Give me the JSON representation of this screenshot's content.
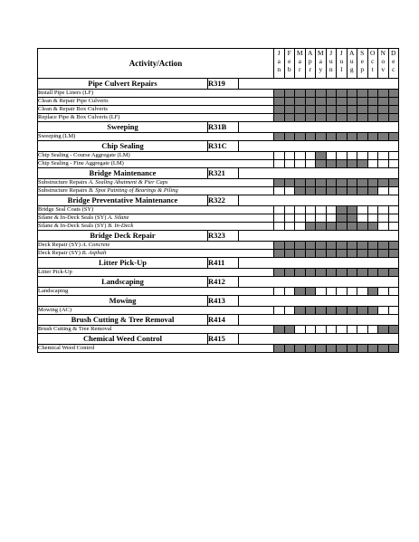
{
  "header": {
    "activity_label": "Activity/Action",
    "months": [
      "Jan",
      "Feb",
      "Mar",
      "Apr",
      "May",
      "Jun",
      "Jul",
      "Aug",
      "Sep",
      "Oct",
      "Nov",
      "Dec"
    ]
  },
  "colors": {
    "shaded": "#7a7a7a",
    "empty": "#ffffff"
  },
  "sections": [
    {
      "title": "Pipe Culvert Repairs",
      "code": "R319",
      "items": [
        {
          "label": "Install Pipe Liners (LF)",
          "months": [
            1,
            1,
            1,
            1,
            1,
            1,
            1,
            1,
            1,
            1,
            1,
            1
          ]
        },
        {
          "label": "Clean & Repair Pipe Culverts",
          "months": [
            1,
            1,
            1,
            1,
            1,
            1,
            1,
            1,
            1,
            1,
            1,
            1
          ]
        },
        {
          "label": "Clean & Repair Box Culverts",
          "months": [
            1,
            1,
            1,
            1,
            1,
            1,
            1,
            1,
            1,
            1,
            1,
            1
          ]
        },
        {
          "label": "Replace Pipe & Box Culverts (LF)",
          "months": [
            1,
            1,
            1,
            1,
            1,
            1,
            1,
            1,
            1,
            1,
            1,
            1
          ]
        }
      ]
    },
    {
      "title": "Sweeping",
      "code": "R31B",
      "items": [
        {
          "label": "Sweeping (LM)",
          "months": [
            1,
            1,
            1,
            1,
            1,
            1,
            1,
            1,
            1,
            1,
            1,
            1
          ]
        }
      ]
    },
    {
      "title": "Chip Sealing",
      "code": "R31C",
      "items": [
        {
          "label": "Chip Sealing - Course Aggregate  (LM)",
          "months": [
            0,
            0,
            0,
            0,
            1,
            0,
            0,
            0,
            0,
            0,
            0,
            0
          ]
        },
        {
          "label": "Chip Sealing - Fine Aggregate  (LM)",
          "months": [
            0,
            0,
            0,
            0,
            1,
            1,
            1,
            1,
            1,
            0,
            0,
            0
          ]
        }
      ]
    },
    {
      "title": "Bridge Maintenance",
      "code": "R321",
      "items": [
        {
          "label": "Substructure Repairs ",
          "label_italic": "A.  Sealing Abutment & Pier Caps",
          "months": [
            1,
            1,
            1,
            1,
            1,
            1,
            1,
            1,
            1,
            1,
            1,
            1
          ]
        },
        {
          "label": "Substructure Repairs ",
          "label_italic": "B.  Spot Painting of Bearings & Piling",
          "months": [
            0,
            0,
            1,
            1,
            1,
            1,
            1,
            1,
            1,
            1,
            0,
            0
          ]
        }
      ]
    },
    {
      "title": "Bridge Preventative Maintenance",
      "code": "R322",
      "items": [
        {
          "label": "Bridge Seal Coats (SY)",
          "months": [
            0,
            0,
            0,
            0,
            0,
            0,
            1,
            1,
            0,
            0,
            0,
            0
          ]
        },
        {
          "label": "Silane & In-Deck Seals (SY) ",
          "label_italic": "A.  Silane",
          "months": [
            0,
            0,
            0,
            0,
            0,
            0,
            1,
            1,
            0,
            0,
            0,
            0
          ]
        },
        {
          "label": "Silane & In-Deck Seals (SY) ",
          "label_italic": "B.  In-Deck",
          "months": [
            0,
            0,
            0,
            1,
            1,
            1,
            1,
            1,
            1,
            1,
            0,
            0
          ]
        }
      ]
    },
    {
      "title": "Bridge Deck Repair",
      "code": "R323",
      "items": [
        {
          "label": "Deck Repair (SY) ",
          "label_italic": "A. Concrete",
          "months": [
            1,
            1,
            1,
            1,
            1,
            1,
            1,
            1,
            1,
            1,
            1,
            1
          ]
        },
        {
          "label": "Deck Repair (SY) ",
          "label_italic": "B. Asphalt",
          "months": [
            1,
            1,
            1,
            1,
            1,
            1,
            1,
            1,
            1,
            1,
            1,
            1
          ]
        }
      ]
    },
    {
      "title": "Litter Pick-Up",
      "code": "R411",
      "items": [
        {
          "label": "Litter Pick-Up",
          "months": [
            1,
            1,
            1,
            1,
            1,
            1,
            1,
            1,
            1,
            1,
            1,
            1
          ]
        }
      ]
    },
    {
      "title": "Landscaping",
      "code": "R412",
      "items": [
        {
          "label": "Landscaping",
          "months": [
            0,
            0,
            1,
            1,
            0,
            0,
            0,
            0,
            0,
            1,
            0,
            0
          ]
        }
      ]
    },
    {
      "title": "Mowing",
      "code": "R413",
      "items": [
        {
          "label": "Mowing (AC)",
          "months": [
            0,
            0,
            1,
            1,
            1,
            1,
            1,
            1,
            1,
            1,
            0,
            0
          ]
        }
      ]
    },
    {
      "title": "Brush Cutting & Tree Removal",
      "code": "R414",
      "items": [
        {
          "label": "Brush Cutting & Tree Removal",
          "months": [
            1,
            1,
            0,
            0,
            0,
            0,
            0,
            0,
            0,
            0,
            1,
            1
          ]
        }
      ]
    },
    {
      "title": "Chemical Weed Control",
      "code": "R415",
      "items": [
        {
          "label": "Chemical Weed Control",
          "months": [
            1,
            1,
            1,
            1,
            1,
            1,
            1,
            1,
            1,
            1,
            1,
            1
          ]
        }
      ]
    }
  ]
}
